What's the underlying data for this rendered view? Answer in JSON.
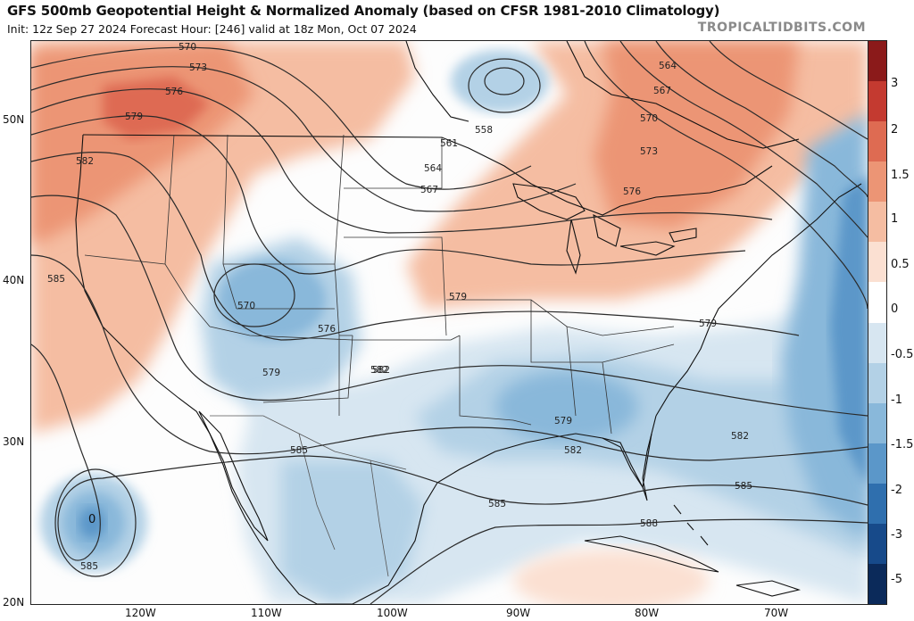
{
  "header": {
    "title": "GFS 500mb Geopotential Height & Normalized Anomaly (based on CFSR 1981-2010 Climatology)",
    "subtitle": "Init: 12z Sep 27 2024   Forecast Hour: [246]   valid at 18z Mon, Oct 07 2024",
    "brand": "TROPICALTIDBITS.COM"
  },
  "axes": {
    "lat_labels": [
      "50N",
      "40N",
      "30N",
      "20N"
    ],
    "lon_labels": [
      "120W",
      "110W",
      "100W",
      "90W",
      "80W",
      "70W"
    ]
  },
  "colorbar": {
    "ticks": [
      "3",
      "2",
      "1.5",
      "1",
      "0.5",
      "0",
      "-0.5",
      "-1",
      "-1.5",
      "-2",
      "-3",
      "-5"
    ],
    "colors": [
      "#8b1a1a",
      "#c43a30",
      "#de6b52",
      "#ec9575",
      "#f5bda2",
      "#fbe0d2",
      "#ffffff",
      "#d7e6f1",
      "#b3d1e6",
      "#89b8da",
      "#5b97c9",
      "#2f6fae",
      "#174a8a",
      "#0b2a5a"
    ]
  },
  "contours": {
    "labels": [
      "570",
      "573",
      "576",
      "579",
      "582",
      "585",
      "564",
      "567",
      "570",
      "573",
      "576",
      "561",
      "558",
      "564",
      "567",
      "570",
      "576",
      "579",
      "582",
      "579",
      "582",
      "582",
      "585",
      "585",
      "585",
      "588",
      "579",
      "579",
      "582",
      "585"
    ]
  },
  "map": {
    "region": "CONUS / North America"
  }
}
